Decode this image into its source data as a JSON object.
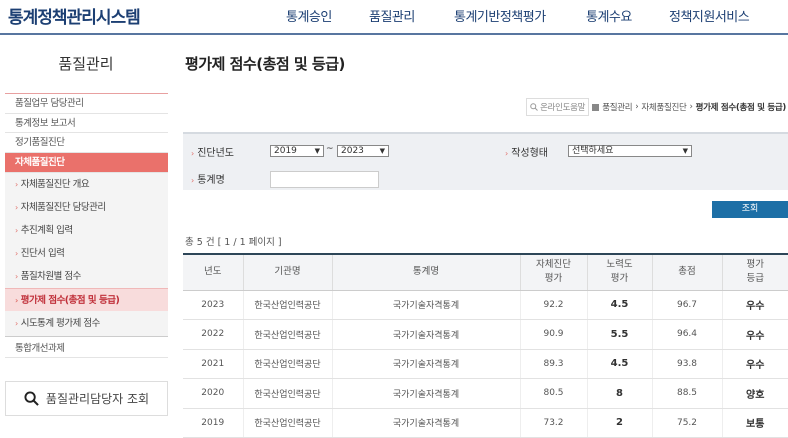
{
  "header": {
    "logo": "통계정책관리시스템",
    "menu": [
      "통계승인",
      "품질관리",
      "통계기반정책평가",
      "통계수요",
      "정책지원서비스"
    ]
  },
  "sidebar": {
    "title": "품질관리",
    "items_top": [
      "품질업무 담당관리",
      "통계정보 보고서",
      "정기품질진단"
    ],
    "active": "자체품질진단",
    "sub_items": [
      "자체품질진단 개요",
      "자체품질진단 담당관리",
      "추진계획 입력",
      "진단서 입력",
      "품질차원별 점수",
      "평가제 점수(총점 및 등급)",
      "시도통계 평가제 점수"
    ],
    "selected_sub": "평가제 점수(총점 및 등급)",
    "items_bottom": [
      "통합개선과제"
    ],
    "manager_search": "품질관리담당자 조회"
  },
  "main": {
    "title": "평가제 점수(총점 및 등급)",
    "breadcrumb": {
      "help": "온라인도움말",
      "path": [
        "품질관리",
        "자체품질진단"
      ],
      "current": "평가제 점수(총점 및 등급)"
    },
    "filter": {
      "year_label": "진단년도",
      "year_from": "2019",
      "year_to": "2023",
      "tilde": "~",
      "type_label": "작성형태",
      "type_value": "선택하세요",
      "name_label": "통계명",
      "name_value": ""
    },
    "search_button": "조회",
    "count": "총 5 건 [ 1 / 1 페이지 ]",
    "table": {
      "headers": [
        "년도",
        "기관명",
        "통계명",
        "자체진단\n평가",
        "노력도\n평가",
        "총점",
        "평가\n등급"
      ],
      "rows": [
        [
          "2023",
          "한국산업인력공단",
          "국가기술자격통계",
          "92.2",
          "4.5",
          "96.7",
          "우수"
        ],
        [
          "2022",
          "한국산업인력공단",
          "국가기술자격통계",
          "90.9",
          "5.5",
          "96.4",
          "우수"
        ],
        [
          "2021",
          "한국산업인력공단",
          "국가기술자격통계",
          "89.3",
          "4.5",
          "93.8",
          "우수"
        ],
        [
          "2020",
          "한국산업인력공단",
          "국가기술자격통계",
          "80.5",
          "8",
          "88.5",
          "양호"
        ],
        [
          "2019",
          "한국산업인력공단",
          "국가기술자격통계",
          "73.2",
          "2",
          "75.2",
          "보통"
        ]
      ]
    }
  },
  "colors": {
    "brand": "#1c3f73",
    "active_menu": "#ea716b",
    "button": "#1d6fa6"
  }
}
